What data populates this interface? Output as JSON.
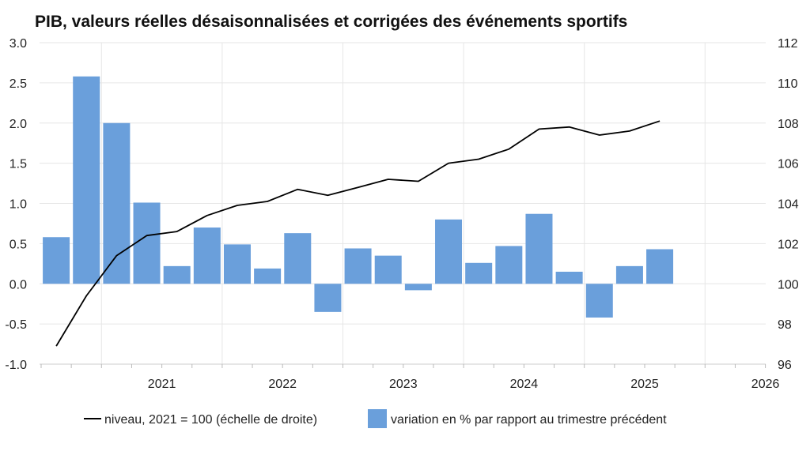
{
  "chart_data": {
    "type": "bar",
    "title": "PIB, valeurs réelles désaisonnalisées et corrigées des événements sportifs",
    "x_tick_labels": [
      "2021",
      "2022",
      "2023",
      "2024",
      "2025",
      "2026"
    ],
    "y_left": {
      "ylim": [
        -1.0,
        3.0
      ],
      "ticks": [
        "-1.0",
        "-0.5",
        "0.0",
        "0.5",
        "1.0",
        "1.5",
        "2.0",
        "2.5",
        "3.0"
      ]
    },
    "y_right": {
      "ylim": [
        96,
        112
      ],
      "ticks": [
        "96",
        "98",
        "100",
        "102",
        "104",
        "106",
        "108",
        "110",
        "112"
      ]
    },
    "quarters": [
      "2020-Q3",
      "2020-Q4",
      "2021-Q1",
      "2021-Q2",
      "2021-Q3",
      "2021-Q4",
      "2022-Q1",
      "2022-Q2",
      "2022-Q3",
      "2022-Q4",
      "2023-Q1",
      "2023-Q2",
      "2023-Q3",
      "2023-Q4",
      "2024-Q1",
      "2024-Q2",
      "2024-Q3",
      "2024-Q4",
      "2025-Q1",
      "2025-Q2",
      "2025-Q3"
    ],
    "series": [
      {
        "name": "variation en % par rapport au trimestre précédent",
        "kind": "bar",
        "axis": "left",
        "color": "#6a9fdb",
        "values": [
          0.58,
          2.58,
          2.0,
          1.01,
          0.22,
          0.7,
          0.49,
          0.19,
          0.63,
          -0.35,
          0.44,
          0.35,
          -0.08,
          0.8,
          0.26,
          0.47,
          0.87,
          0.15,
          -0.42,
          0.22,
          0.43
        ]
      },
      {
        "name": "niveau, 2021 = 100 (échelle de droite)",
        "kind": "line",
        "axis": "right",
        "color": "#000000",
        "values": [
          96.9,
          99.4,
          101.4,
          102.4,
          102.6,
          103.4,
          103.9,
          104.1,
          104.7,
          104.4,
          104.8,
          105.2,
          105.1,
          106.0,
          106.2,
          106.7,
          107.7,
          107.8,
          107.4,
          107.6,
          108.1
        ]
      }
    ],
    "grid": true,
    "legend_position": "bottom"
  }
}
